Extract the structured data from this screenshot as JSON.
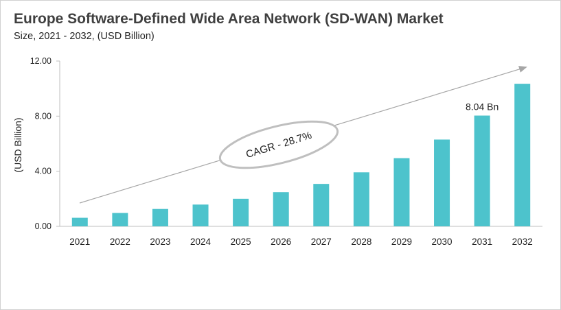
{
  "colors": {
    "bar": "#4dc3cc",
    "axis": "#bfbfbf",
    "trend_arrow": "#a6a6a6",
    "ellipse": "#bfbfbf"
  },
  "chart_data": {
    "type": "bar",
    "title": "Europe Software-Defined Wide Area Network (SD-WAN) Market",
    "subtitle": "Size, 2021 - 2032, (USD Billion)",
    "xlabel": "",
    "ylabel": "(USD Billion)",
    "ylim": [
      0,
      12
    ],
    "yticks": [
      "0.00",
      "4.00",
      "8.00",
      "12.00"
    ],
    "grid": false,
    "categories": [
      "2021",
      "2022",
      "2023",
      "2024",
      "2025",
      "2026",
      "2027",
      "2028",
      "2029",
      "2030",
      "2031",
      "2032"
    ],
    "values": [
      0.62,
      0.97,
      1.26,
      1.58,
      2.0,
      2.48,
      3.08,
      3.92,
      4.95,
      6.3,
      8.04,
      10.35
    ],
    "annotations": [
      {
        "category": "2031",
        "text": "8.04 Bn"
      }
    ],
    "cagr_label": "CAGR - 28.7%"
  }
}
